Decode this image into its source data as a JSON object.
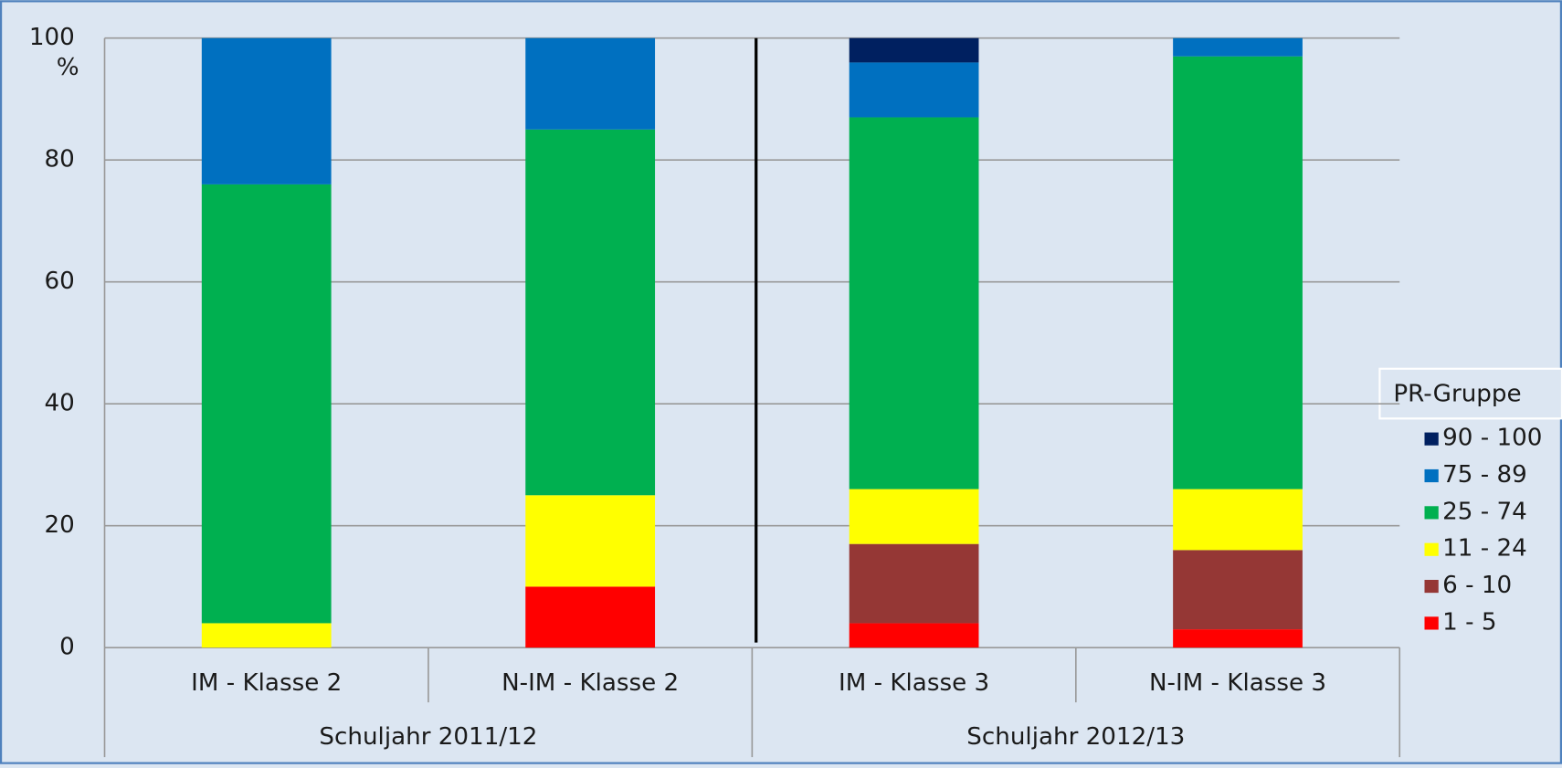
{
  "chart_data": {
    "type": "stacked_bar",
    "y_label": "%",
    "categories": [
      "IM - Klasse 2",
      "N-IM - Klasse 2",
      "IM - Klasse 3",
      "N-IM - Klasse 3"
    ],
    "group_labels": [
      "Schuljahr 2011/12",
      "Schuljahr 2012/13"
    ],
    "legend_title": "PR-Gruppe",
    "legend_position": "right",
    "grid": true,
    "ylim": [
      0,
      100
    ],
    "yticks": [
      0,
      20,
      40,
      60,
      80,
      100
    ],
    "series": [
      {
        "name": "1 - 5",
        "color": "#ff0000",
        "values": [
          0,
          10,
          4,
          3
        ]
      },
      {
        "name": "6 - 10",
        "color": "#953735",
        "values": [
          0,
          0,
          13,
          13
        ]
      },
      {
        "name": "11 - 24",
        "color": "#ffff00",
        "values": [
          4,
          15,
          9,
          10
        ]
      },
      {
        "name": "25 - 74",
        "color": "#00b050",
        "values": [
          72,
          60,
          61,
          71
        ]
      },
      {
        "name": "75 - 89",
        "color": "#0070c0",
        "values": [
          24,
          15,
          9,
          3
        ]
      },
      {
        "name": "90 - 100",
        "color": "#002060",
        "values": [
          0,
          0,
          4,
          0
        ]
      }
    ]
  }
}
